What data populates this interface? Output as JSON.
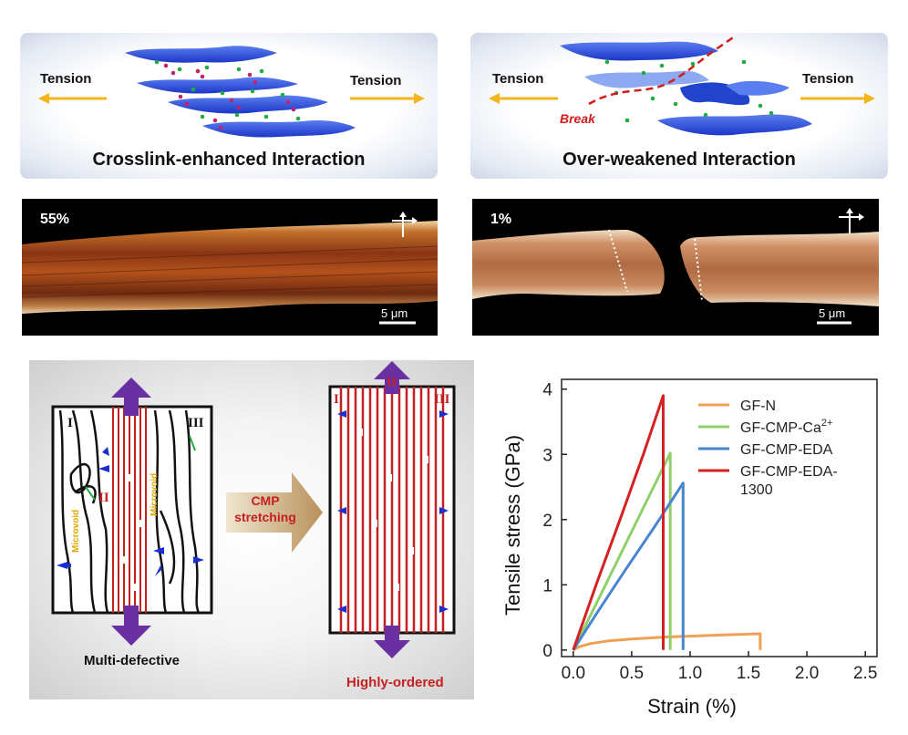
{
  "top_left": {
    "tension_left": "Tension",
    "tension_right": "Tension",
    "caption": "Crosslink-enhanced Interaction"
  },
  "top_right": {
    "tension_left": "Tension",
    "tension_right": "Tension",
    "break_label": "Break",
    "caption": "Over-weakened Interaction"
  },
  "micrograph_left": {
    "strain": "55%",
    "scale": "5 μm"
  },
  "micrograph_right": {
    "strain": "1%",
    "scale": "5 μm"
  },
  "scheme": {
    "left_regions": [
      "I",
      "II",
      "III"
    ],
    "microvoid_1": "Microvoid",
    "microvoid_2": "Microvoid",
    "left_caption": "Multi-defective",
    "process_line1": "CMP",
    "process_line2": "stretching",
    "right_regions": [
      "I",
      "II",
      "III"
    ],
    "right_caption": "Highly-ordered"
  },
  "chart_data": {
    "type": "line",
    "xlabel": "Strain (%)",
    "ylabel": "Tensile stress (GPa)",
    "xlim": [
      -0.1,
      2.6
    ],
    "ylim": [
      -0.1,
      4.15
    ],
    "xticks": [
      "0.0",
      "0.5",
      "1.0",
      "1.5",
      "2.0",
      "2.5"
    ],
    "xtick_values": [
      0,
      0.5,
      1.0,
      1.5,
      2.0,
      2.5
    ],
    "yticks": [
      "0",
      "1",
      "2",
      "3",
      "4"
    ],
    "ytick_values": [
      0,
      1,
      2,
      3,
      4
    ],
    "legend_position": "top-right",
    "series": [
      {
        "name": "GF-N",
        "color": "#f0a055",
        "x": [
          0,
          0.05,
          0.15,
          0.3,
          0.5,
          0.8,
          1.1,
          1.4,
          1.6,
          1.6
        ],
        "y": [
          0,
          0.05,
          0.1,
          0.14,
          0.17,
          0.2,
          0.22,
          0.24,
          0.25,
          0
        ]
      },
      {
        "name": "GF-CMP-Ca",
        "name_sup": "2+",
        "color": "#8fd06a",
        "x": [
          0,
          0.2,
          0.4,
          0.6,
          0.83,
          0.83
        ],
        "y": [
          0,
          0.72,
          1.45,
          2.18,
          3.02,
          0
        ]
      },
      {
        "name": "GF-CMP-EDA",
        "color": "#4a86d0",
        "x": [
          0,
          0.2,
          0.45,
          0.7,
          0.94,
          0.94
        ],
        "y": [
          0,
          0.56,
          1.24,
          1.9,
          2.56,
          0
        ]
      },
      {
        "name": "GF-CMP-EDA-",
        "name_line2": "1300",
        "color": "#d42222",
        "x": [
          0,
          0.2,
          0.4,
          0.6,
          0.77,
          0.77
        ],
        "y": [
          0,
          1.02,
          2.0,
          3.0,
          3.9,
          0
        ]
      }
    ]
  }
}
